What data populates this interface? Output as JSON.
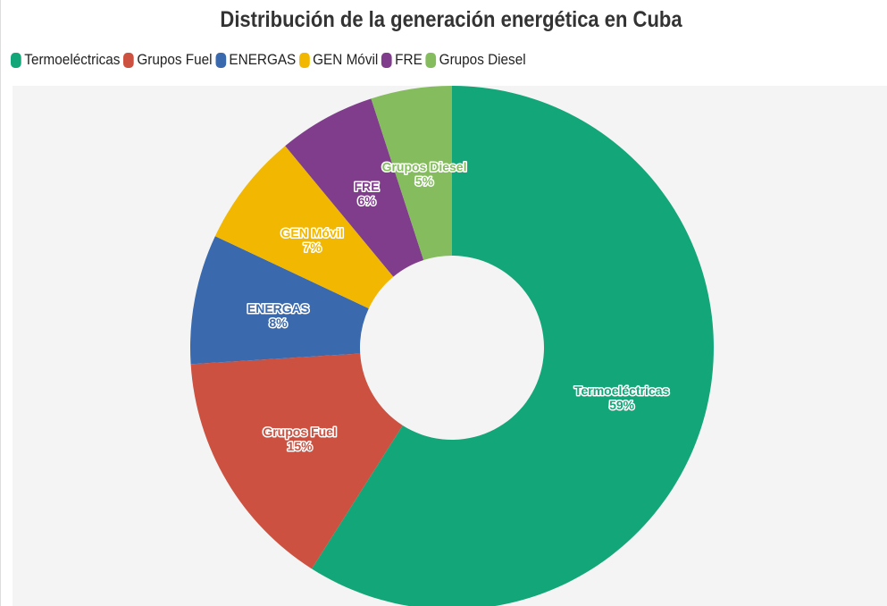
{
  "chart_data": {
    "type": "pie",
    "donut": true,
    "title": "Distribución de la generación energética en Cuba",
    "legend_position": "top-left",
    "categories": [
      "Termoeléctricas",
      "Grupos Fuel",
      "ENERGAS",
      "GEN Móvil",
      "FRE",
      "Grupos Diesel"
    ],
    "values": [
      59,
      15,
      8,
      7,
      6,
      5
    ],
    "labels": [
      "59%",
      "15%",
      "8%",
      "7%",
      "6%",
      "5%"
    ],
    "colors": [
      "#13a678",
      "#cc5140",
      "#3a69ad",
      "#f2b700",
      "#7f3d8c",
      "#84bc5e"
    ]
  }
}
